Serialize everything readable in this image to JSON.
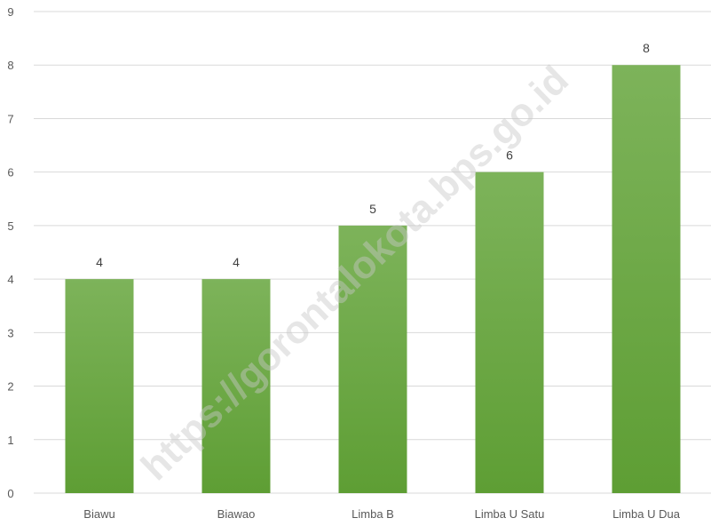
{
  "chart_data": {
    "type": "bar",
    "categories": [
      "Biawu",
      "Biawao",
      "Limba B",
      "Limba U Satu",
      "Limba U Dua"
    ],
    "values": [
      4,
      4,
      5,
      6,
      8
    ],
    "data_labels": [
      "4",
      "4",
      "5",
      "6",
      "8"
    ],
    "title": "",
    "xlabel": "",
    "ylabel": "",
    "ylim": [
      0,
      9
    ],
    "yticks": [
      "0",
      "1",
      "2",
      "3",
      "4",
      "5",
      "6",
      "7",
      "8",
      "9"
    ],
    "grid": true,
    "bar_color_top": "#7db35a",
    "bar_color_bottom": "#5e9e34",
    "gridline_color": "#d9d9d9",
    "watermark": "https://gorontalokota.bps.go.id"
  }
}
